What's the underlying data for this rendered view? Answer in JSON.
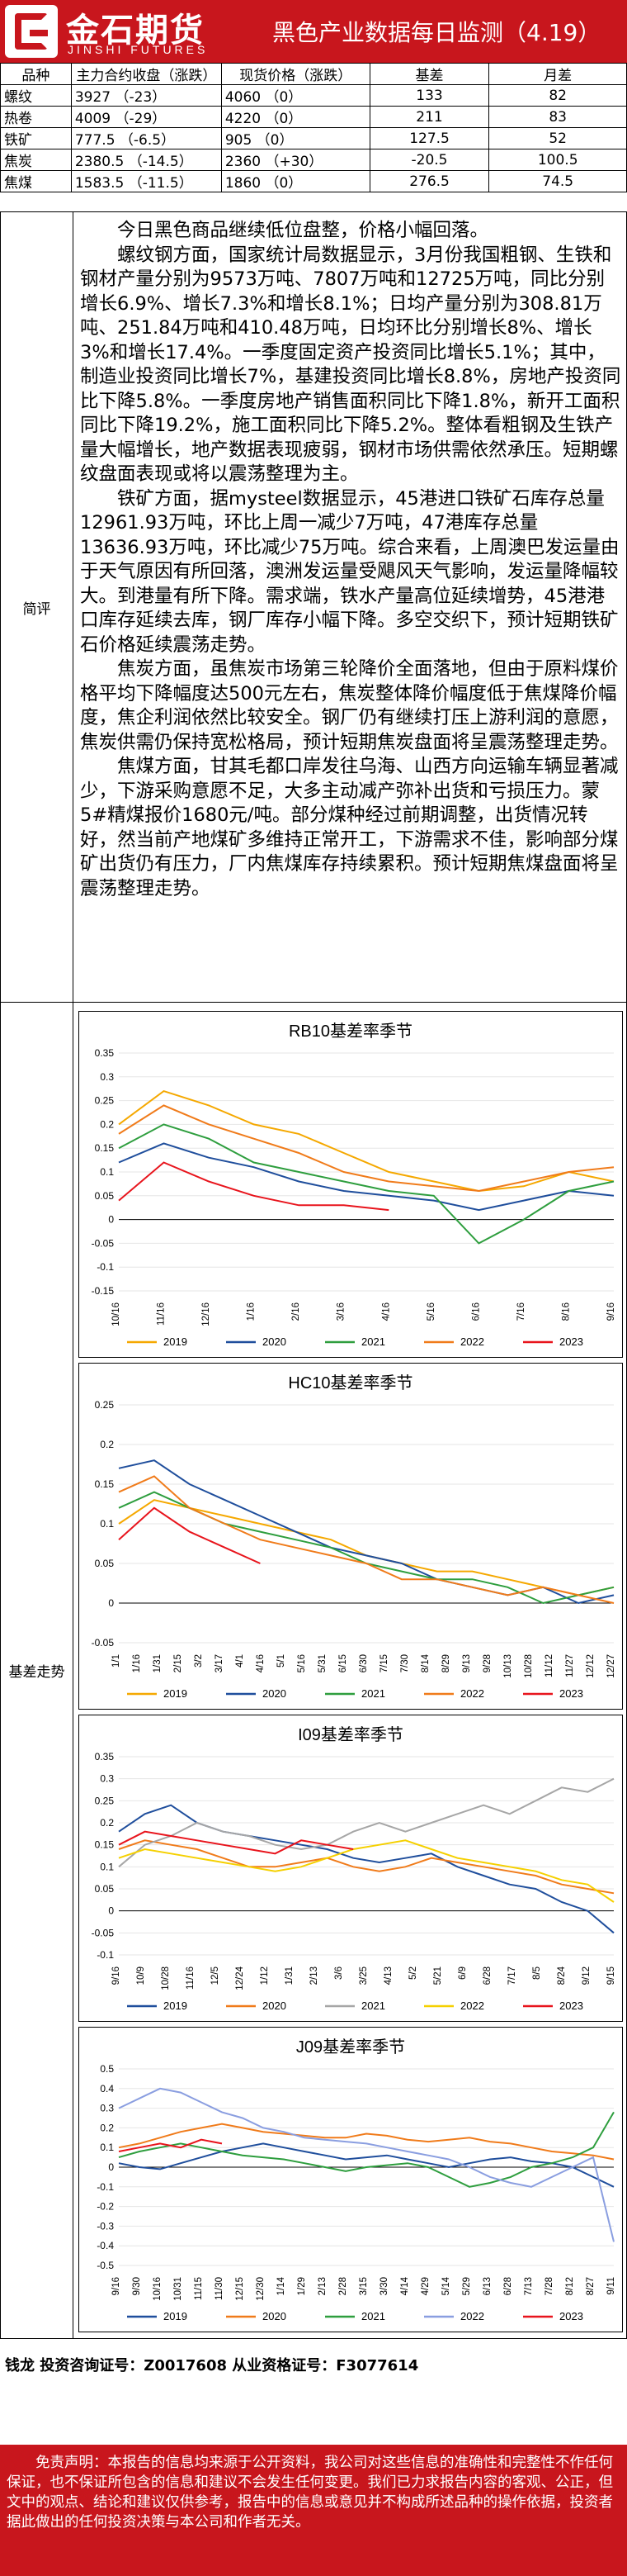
{
  "header": {
    "logo_cn": "金石期货",
    "logo_en": "JINSHI FUTURES",
    "title": "黑色产业数据每日监测（4.19）"
  },
  "price_table": {
    "headers": [
      "品种",
      "主力合约收盘（涨跌）",
      "现货价格（涨跌）",
      "基差",
      "月差"
    ],
    "rows": [
      [
        "螺纹",
        "3927 （-23）",
        "4060 （0）",
        "133",
        "82"
      ],
      [
        "热卷",
        "4009 （-29）",
        "4220 （0）",
        "211",
        "83"
      ],
      [
        "铁矿",
        "777.5 （-6.5）",
        "905 （0）",
        "127.5",
        "52"
      ],
      [
        "焦炭",
        "2380.5 （-14.5）",
        "2360 （+30）",
        "-20.5",
        "100.5"
      ],
      [
        "焦煤",
        "1583.5 （-11.5）",
        "1860 （0）",
        "276.5",
        "74.5"
      ]
    ]
  },
  "commentary": {
    "label": "简评",
    "paragraphs": [
      "今日黑色商品继续低位盘整，价格小幅回落。",
      "螺纹钢方面，国家统计局数据显示，3月份我国粗钢、生铁和钢材产量分别为9573万吨、7807万吨和12725万吨，同比分别增长6.9%、增长7.3%和增长8.1%；日均产量分别为308.81万吨、251.84万吨和410.48万吨，日均环比分别增长8%、增长3%和增长17.4%。一季度固定资产投资同比增长5.1%；其中，制造业投资同比增长7%，基建投资同比增长8.8%，房地产投资同比下降5.8%。一季度房地产销售面积同比下降1.8%，新开工面积同比下降19.2%，施工面积同比下降5.2%。整体看粗钢及生铁产量大幅增长，地产数据表现疲弱，钢材市场供需依然承压。短期螺纹盘面表现或将以震荡整理为主。",
      "铁矿方面，据mysteel数据显示，45港进口铁矿石库存总量12961.93万吨，环比上周一减少7万吨，47港库存总量13636.93万吨，环比减少75万吨。综合来看，上周澳巴发运量由于天气原因有所回落，澳洲发运量受飓风天气影响，发运量降幅较大。到港量有所下降。需求端，铁水产量高位延续增势，45港港口库存延续去库，钢厂库存小幅下降。多空交织下，预计短期铁矿石价格延续震荡走势。",
      "焦炭方面，虽焦炭市场第三轮降价全面落地，但由于原料煤价格平均下降幅度达500元左右，焦炭整体降价幅度低于焦煤降价幅度，焦企利润依然比较安全。钢厂仍有继续打压上游利润的意愿，焦炭供需仍保持宽松格局，预计短期焦炭盘面将呈震荡整理走势。",
      "焦煤方面，甘其毛都口岸发往乌海、山西方向运输车辆显著减少，下游采购意愿不足，大多主动减产弥补出货和亏损压力。蒙5#精煤报价1680元/吨。部分煤种经过前期调整，出货情况转好，然当前产地煤矿多维持正常开工，下游需求不佳，影响部分煤矿出货仍有压力，厂内焦煤库存持续累积。预计短期焦煤盘面将呈震荡整理走势。"
    ]
  },
  "basis": {
    "label": "基差走势"
  },
  "chart_data": [
    {
      "type": "line",
      "title": "RB10基差率季节",
      "ylim": [
        -0.15,
        0.35
      ],
      "yticks": [
        "0.35",
        "0.3",
        "0.25",
        "0.2",
        "0.15",
        "0.1",
        "0.05",
        "0",
        "-0.05",
        "-0.1",
        "-0.15"
      ],
      "xticks": [
        "10/16",
        "11/16",
        "12/16",
        "1/16",
        "2/16",
        "3/16",
        "4/16",
        "5/16",
        "6/16",
        "7/16",
        "8/16",
        "9/16"
      ],
      "series": [
        {
          "name": "2019",
          "color": "#f5a800",
          "values": [
            0.2,
            0.27,
            0.24,
            0.2,
            0.18,
            0.14,
            0.1,
            0.08,
            0.06,
            0.07,
            0.1,
            0.08
          ]
        },
        {
          "name": "2020",
          "color": "#1f4e9c",
          "values": [
            0.12,
            0.16,
            0.13,
            0.11,
            0.08,
            0.06,
            0.05,
            0.04,
            0.02,
            0.04,
            0.06,
            0.05
          ]
        },
        {
          "name": "2021",
          "color": "#2e9e3e",
          "values": [
            0.15,
            0.2,
            0.17,
            0.12,
            0.1,
            0.08,
            0.06,
            0.05,
            -0.05,
            0.0,
            0.06,
            0.08
          ]
        },
        {
          "name": "2022",
          "color": "#f07b1a",
          "values": [
            0.18,
            0.24,
            0.2,
            0.17,
            0.14,
            0.1,
            0.08,
            0.07,
            0.06,
            0.08,
            0.1,
            0.11
          ]
        },
        {
          "name": "2023",
          "color": "#e8141c",
          "values": [
            0.04,
            0.12,
            0.08,
            0.05,
            0.03,
            0.03,
            0.02
          ]
        }
      ]
    },
    {
      "type": "line",
      "title": "HC10基差率季节",
      "ylim": [
        -0.05,
        0.25
      ],
      "yticks": [
        "0.25",
        "0.2",
        "0.15",
        "0.1",
        "0.05",
        "0",
        "-0.05"
      ],
      "xticks": [
        "1/1",
        "1/16",
        "1/31",
        "2/15",
        "3/2",
        "3/17",
        "4/1",
        "4/16",
        "5/1",
        "5/16",
        "5/31",
        "6/15",
        "6/30",
        "7/15",
        "7/30",
        "8/14",
        "8/29",
        "9/13",
        "9/28",
        "10/13",
        "10/28",
        "11/12",
        "11/27",
        "12/12",
        "12/27"
      ],
      "series": [
        {
          "name": "2019",
          "color": "#f5a800",
          "values": [
            0.1,
            0.13,
            0.12,
            0.11,
            0.1,
            0.09,
            0.08,
            0.06,
            0.05,
            0.04,
            0.04,
            0.03,
            0.02,
            0.01,
            0.02
          ]
        },
        {
          "name": "2020",
          "color": "#1f4e9c",
          "values": [
            0.17,
            0.18,
            0.15,
            0.13,
            0.11,
            0.09,
            0.07,
            0.06,
            0.05,
            0.03,
            0.02,
            0.01,
            0.02,
            0.0,
            0.01
          ]
        },
        {
          "name": "2021",
          "color": "#2e9e3e",
          "values": [
            0.12,
            0.14,
            0.12,
            0.1,
            0.09,
            0.08,
            0.07,
            0.05,
            0.04,
            0.03,
            0.03,
            0.02,
            0.0,
            0.01,
            0.02
          ]
        },
        {
          "name": "2022",
          "color": "#f07b1a",
          "values": [
            0.14,
            0.16,
            0.12,
            0.1,
            0.08,
            0.07,
            0.06,
            0.05,
            0.03,
            0.03,
            0.02,
            0.01,
            0.02,
            0.01,
            0.0
          ]
        },
        {
          "name": "2023",
          "color": "#e8141c",
          "values": [
            0.08,
            0.12,
            0.09,
            0.07,
            0.05
          ]
        }
      ]
    },
    {
      "type": "line",
      "title": "I09基差率季节",
      "ylim": [
        -0.1,
        0.35
      ],
      "yticks": [
        "0.35",
        "0.3",
        "0.25",
        "0.2",
        "0.15",
        "0.1",
        "0.05",
        "0",
        "-0.05",
        "-0.1"
      ],
      "xticks": [
        "9/16",
        "10/9",
        "10/28",
        "11/16",
        "12/5",
        "12/24",
        "1/12",
        "1/31",
        "2/13",
        "3/6",
        "3/25",
        "4/13",
        "5/2",
        "5/21",
        "6/9",
        "6/28",
        "7/17",
        "8/5",
        "8/24",
        "9/12",
        "9/15"
      ],
      "series": [
        {
          "name": "2019",
          "color": "#1f4e9c",
          "values": [
            0.18,
            0.22,
            0.24,
            0.2,
            0.18,
            0.17,
            0.16,
            0.15,
            0.14,
            0.12,
            0.11,
            0.12,
            0.13,
            0.1,
            0.08,
            0.06,
            0.05,
            0.02,
            0.0,
            -0.05
          ]
        },
        {
          "name": "2020",
          "color": "#f07b1a",
          "values": [
            0.14,
            0.16,
            0.15,
            0.14,
            0.12,
            0.1,
            0.1,
            0.11,
            0.12,
            0.1,
            0.09,
            0.1,
            0.12,
            0.11,
            0.1,
            0.09,
            0.08,
            0.06,
            0.05,
            0.04
          ]
        },
        {
          "name": "2021",
          "color": "#a6a6a6",
          "values": [
            0.1,
            0.15,
            0.17,
            0.2,
            0.18,
            0.17,
            0.15,
            0.14,
            0.15,
            0.18,
            0.2,
            0.18,
            0.2,
            0.22,
            0.24,
            0.22,
            0.25,
            0.28,
            0.27,
            0.3
          ]
        },
        {
          "name": "2022",
          "color": "#f5d000",
          "values": [
            0.12,
            0.14,
            0.13,
            0.12,
            0.11,
            0.1,
            0.09,
            0.1,
            0.12,
            0.14,
            0.15,
            0.16,
            0.14,
            0.12,
            0.11,
            0.1,
            0.09,
            0.07,
            0.06,
            0.02
          ]
        },
        {
          "name": "2023",
          "color": "#e8141c",
          "values": [
            0.15,
            0.18,
            0.17,
            0.16,
            0.15,
            0.14,
            0.13,
            0.16,
            0.15,
            0.14
          ]
        }
      ]
    },
    {
      "type": "line",
      "title": "J09基差率季节",
      "ylim": [
        -0.5,
        0.5
      ],
      "yticks": [
        "0.5",
        "0.4",
        "0.3",
        "0.2",
        "0.1",
        "0",
        "-0.1",
        "-0.2",
        "-0.3",
        "-0.4",
        "-0.5"
      ],
      "xticks": [
        "9/16",
        "9/30",
        "10/16",
        "10/31",
        "11/15",
        "11/30",
        "12/15",
        "12/30",
        "1/14",
        "1/29",
        "2/13",
        "2/28",
        "3/15",
        "3/30",
        "4/14",
        "4/29",
        "5/14",
        "5/29",
        "6/13",
        "6/28",
        "7/13",
        "7/28",
        "8/12",
        "8/27",
        "9/11"
      ],
      "series": [
        {
          "name": "2019",
          "color": "#1f4e9c",
          "values": [
            0.02,
            0.0,
            -0.01,
            0.02,
            0.05,
            0.08,
            0.1,
            0.12,
            0.1,
            0.08,
            0.06,
            0.04,
            0.05,
            0.06,
            0.04,
            0.02,
            0.0,
            0.02,
            0.04,
            0.05,
            0.03,
            0.02,
            0.0,
            -0.05,
            -0.1
          ]
        },
        {
          "name": "2020",
          "color": "#f07b1a",
          "values": [
            0.1,
            0.12,
            0.15,
            0.18,
            0.2,
            0.22,
            0.2,
            0.18,
            0.17,
            0.16,
            0.15,
            0.15,
            0.17,
            0.16,
            0.14,
            0.13,
            0.14,
            0.15,
            0.13,
            0.12,
            0.1,
            0.08,
            0.07,
            0.06,
            0.04
          ]
        },
        {
          "name": "2021",
          "color": "#2e9e3e",
          "values": [
            0.05,
            0.08,
            0.1,
            0.12,
            0.1,
            0.08,
            0.06,
            0.05,
            0.04,
            0.02,
            0.0,
            -0.02,
            0.0,
            0.01,
            0.02,
            0.0,
            -0.05,
            -0.1,
            -0.08,
            -0.05,
            0.0,
            0.02,
            0.05,
            0.1,
            0.28
          ]
        },
        {
          "name": "2022",
          "color": "#8a9ee0",
          "values": [
            0.3,
            0.35,
            0.4,
            0.38,
            0.33,
            0.28,
            0.25,
            0.2,
            0.18,
            0.15,
            0.14,
            0.13,
            0.12,
            0.1,
            0.08,
            0.06,
            0.04,
            0.0,
            -0.05,
            -0.08,
            -0.1,
            -0.05,
            0.0,
            0.05,
            -0.38
          ]
        },
        {
          "name": "2023",
          "color": "#e8141c",
          "values": [
            0.08,
            0.1,
            0.12,
            0.1,
            0.14,
            0.12
          ]
        }
      ]
    }
  ],
  "analyst": "钱龙 投资咨询证号：Z0017608 从业资格证号：F3077614",
  "disclaimer": "免责声明：本报告的信息均来源于公开资料，我公司对这些信息的准确性和完整性不作任何保证，也不保证所包含的信息和建议不会发生任何变更。我们已力求报告内容的客观、公正，但文中的观点、结论和建议仅供参考，报告中的信息或意见并不构成所述品种的操作依据，投资者据此做出的任何投资决策与本公司和作者无关。"
}
